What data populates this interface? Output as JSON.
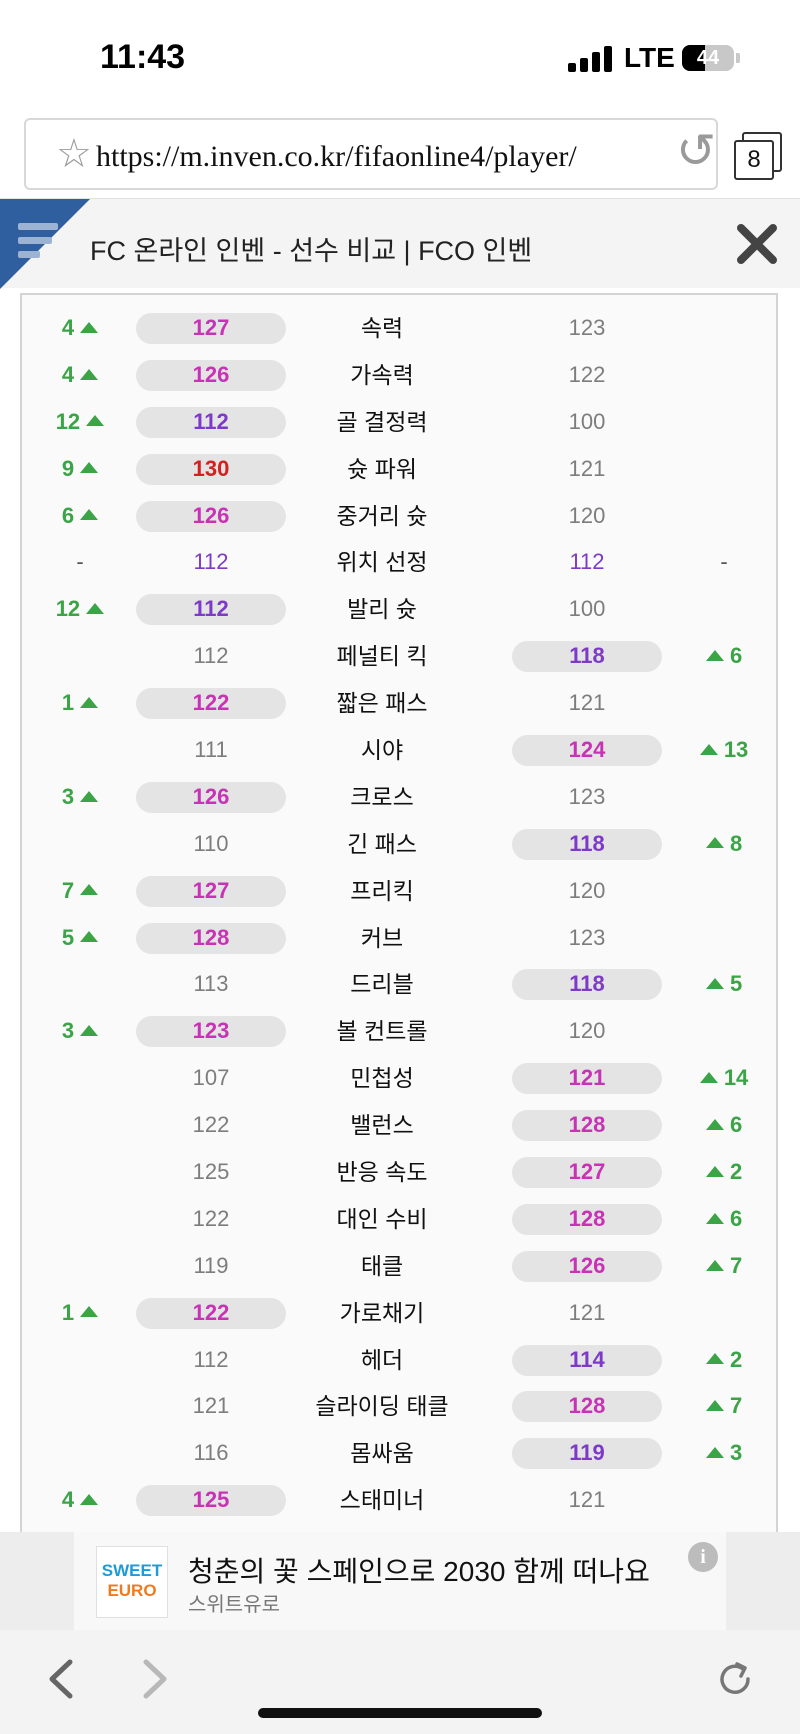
{
  "status_bar": {
    "time": "11:43",
    "network": "LTE",
    "battery": "44",
    "battery_level": 0.44
  },
  "browser": {
    "url": "https://m.inven.co.kr/fifaonline4/player/",
    "tab_count": "8",
    "icons": {
      "bookmark": "star-icon",
      "reload": "reload-icon",
      "tabs": "tabs-icon"
    }
  },
  "site_header": {
    "title": "FC 온라인 인벤 - 선수 비교 | FCO 인벤",
    "menu_icon": "menu-icon",
    "close_icon": "close-icon"
  },
  "colors": {
    "green": "#3aa447",
    "magenta": "#c833b5",
    "purple": "#7d3ac9",
    "red": "#d42020",
    "gray": "#7d7d7d"
  },
  "stats": [
    {
      "name": "속력",
      "left": "127",
      "right": "123",
      "winner": "left",
      "diff": "4",
      "color": "magenta"
    },
    {
      "name": "가속력",
      "left": "126",
      "right": "122",
      "winner": "left",
      "diff": "4",
      "color": "magenta"
    },
    {
      "name": "골 결정력",
      "left": "112",
      "right": "100",
      "winner": "left",
      "diff": "12",
      "color": "purple"
    },
    {
      "name": "슛 파워",
      "left": "130",
      "right": "121",
      "winner": "left",
      "diff": "9",
      "color": "red"
    },
    {
      "name": "중거리 슛",
      "left": "126",
      "right": "120",
      "winner": "left",
      "diff": "6",
      "color": "magenta"
    },
    {
      "name": "위치 선정",
      "left": "112",
      "right": "112",
      "winner": "tie",
      "diff": "-",
      "color": "purple"
    },
    {
      "name": "발리 슛",
      "left": "112",
      "right": "100",
      "winner": "left",
      "diff": "12",
      "color": "purple"
    },
    {
      "name": "페널티 킥",
      "left": "112",
      "right": "118",
      "winner": "right",
      "diff": "6",
      "color": "purple"
    },
    {
      "name": "짧은 패스",
      "left": "122",
      "right": "121",
      "winner": "left",
      "diff": "1",
      "color": "magenta"
    },
    {
      "name": "시야",
      "left": "111",
      "right": "124",
      "winner": "right",
      "diff": "13",
      "color": "magenta"
    },
    {
      "name": "크로스",
      "left": "126",
      "right": "123",
      "winner": "left",
      "diff": "3",
      "color": "magenta"
    },
    {
      "name": "긴 패스",
      "left": "110",
      "right": "118",
      "winner": "right",
      "diff": "8",
      "color": "purple"
    },
    {
      "name": "프리킥",
      "left": "127",
      "right": "120",
      "winner": "left",
      "diff": "7",
      "color": "magenta"
    },
    {
      "name": "커브",
      "left": "128",
      "right": "123",
      "winner": "left",
      "diff": "5",
      "color": "magenta"
    },
    {
      "name": "드리블",
      "left": "113",
      "right": "118",
      "winner": "right",
      "diff": "5",
      "color": "purple"
    },
    {
      "name": "볼 컨트롤",
      "left": "123",
      "right": "120",
      "winner": "left",
      "diff": "3",
      "color": "magenta"
    },
    {
      "name": "민첩성",
      "left": "107",
      "right": "121",
      "winner": "right",
      "diff": "14",
      "color": "magenta"
    },
    {
      "name": "밸런스",
      "left": "122",
      "right": "128",
      "winner": "right",
      "diff": "6",
      "color": "magenta"
    },
    {
      "name": "반응 속도",
      "left": "125",
      "right": "127",
      "winner": "right",
      "diff": "2",
      "color": "magenta"
    },
    {
      "name": "대인 수비",
      "left": "122",
      "right": "128",
      "winner": "right",
      "diff": "6",
      "color": "magenta"
    },
    {
      "name": "태클",
      "left": "119",
      "right": "126",
      "winner": "right",
      "diff": "7",
      "color": "magenta"
    },
    {
      "name": "가로채기",
      "left": "122",
      "right": "121",
      "winner": "left",
      "diff": "1",
      "color": "magenta"
    },
    {
      "name": "헤더",
      "left": "112",
      "right": "114",
      "winner": "right",
      "diff": "2",
      "color": "purple"
    },
    {
      "name": "슬라이딩 태클",
      "left": "121",
      "right": "128",
      "winner": "right",
      "diff": "7",
      "color": "magenta"
    },
    {
      "name": "몸싸움",
      "left": "116",
      "right": "119",
      "winner": "right",
      "diff": "3",
      "color": "purple"
    },
    {
      "name": "스태미너",
      "left": "125",
      "right": "121",
      "winner": "left",
      "diff": "4",
      "color": "magenta"
    }
  ],
  "ad": {
    "headline": "청춘의 꽃 스페인으로 2030 함께 떠나요",
    "brand": "스위트유로",
    "logo_line1": "SWEET",
    "logo_line2": "EURO",
    "info_icon_label": "i"
  },
  "bottom_toolbar": {
    "back_icon": "back-icon",
    "forward_icon": "forward-icon",
    "refresh_icon": "refresh-icon"
  }
}
